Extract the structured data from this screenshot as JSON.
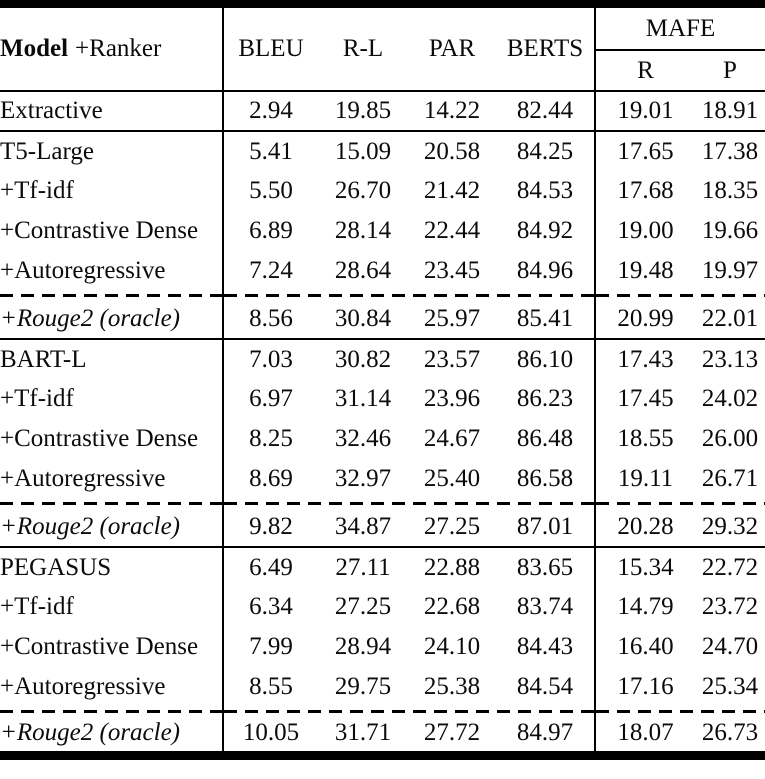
{
  "table": {
    "header": {
      "model_bold": "Model",
      "ranker": "+Ranker",
      "metric_columns": [
        "BLEU",
        "R-L",
        "PAR",
        "BERTS"
      ],
      "group": {
        "label": "MAFE",
        "sub_columns": [
          "R",
          "P"
        ]
      }
    },
    "sections": [
      {
        "rows": [
          {
            "label": "Extractive",
            "label_style": "bold",
            "values": [
              "2.94",
              "19.85",
              "14.22",
              "82.44",
              "19.01",
              "18.91"
            ],
            "bold_values": []
          }
        ]
      },
      {
        "rows": [
          {
            "label": "T5-Large",
            "label_style": "bold",
            "values": [
              "5.41",
              "15.09",
              "20.58",
              "84.25",
              "17.65",
              "17.38"
            ],
            "bold_values": []
          },
          {
            "label": "+Tf-idf",
            "label_style": "normal",
            "values": [
              "5.50",
              "26.70",
              "21.42",
              "84.53",
              "17.68",
              "18.35"
            ],
            "bold_values": []
          },
          {
            "label": "+Contrastive Dense",
            "label_style": "normal",
            "values": [
              "6.89",
              "28.14",
              "22.44",
              "84.92",
              "19.00",
              "19.66"
            ],
            "bold_values": []
          },
          {
            "label": "+Autoregressive",
            "label_style": "normal",
            "values": [
              "7.24",
              "28.64",
              "23.45",
              "84.96",
              "19.48",
              "19.97"
            ],
            "bold_values": [
              4
            ]
          },
          {
            "label": "+Rouge2 (oracle)",
            "label_style": "italic",
            "dashed_above": true,
            "values": [
              "8.56",
              "30.84",
              "25.97",
              "85.41",
              "20.99",
              "22.01"
            ],
            "bold_values": []
          }
        ]
      },
      {
        "rows": [
          {
            "label": "BART-L",
            "label_style": "bold",
            "values": [
              "7.03",
              "30.82",
              "23.57",
              "86.10",
              "17.43",
              "23.13"
            ],
            "bold_values": []
          },
          {
            "label": "+Tf-idf",
            "label_style": "normal",
            "values": [
              "6.97",
              "31.14",
              "23.96",
              "86.23",
              "17.45",
              "24.02"
            ],
            "bold_values": []
          },
          {
            "label": "+Contrastive Dense",
            "label_style": "normal",
            "values": [
              "8.25",
              "32.46",
              "24.67",
              "86.48",
              "18.55",
              "26.00"
            ],
            "bold_values": []
          },
          {
            "label": "+Autoregressive",
            "label_style": "normal",
            "values": [
              "8.69",
              "32.97",
              "25.40",
              "86.58",
              "19.11",
              "26.71"
            ],
            "bold_values": [
              0,
              1,
              2,
              3,
              5
            ]
          },
          {
            "label": "+Rouge2 (oracle)",
            "label_style": "italic",
            "dashed_above": true,
            "values": [
              "9.82",
              "34.87",
              "27.25",
              "87.01",
              "20.28",
              "29.32"
            ],
            "bold_values": []
          }
        ]
      },
      {
        "rows": [
          {
            "label": "PEGASUS",
            "label_style": "bold",
            "values": [
              "6.49",
              "27.11",
              "22.88",
              "83.65",
              "15.34",
              "22.72"
            ],
            "bold_values": []
          },
          {
            "label": "+Tf-idf",
            "label_style": "normal",
            "values": [
              "6.34",
              "27.25",
              "22.68",
              "83.74",
              "14.79",
              "23.72"
            ],
            "bold_values": []
          },
          {
            "label": "+Contrastive Dense",
            "label_style": "normal",
            "values": [
              "7.99",
              "28.94",
              "24.10",
              "84.43",
              "16.40",
              "24.70"
            ],
            "bold_values": []
          },
          {
            "label": "+Autoregressive",
            "label_style": "normal",
            "values": [
              "8.55",
              "29.75",
              "25.38",
              "84.54",
              "17.16",
              "25.34"
            ],
            "bold_values": []
          },
          {
            "label": "+Rouge2 (oracle)",
            "label_style": "italic",
            "dashed_above": true,
            "values": [
              "10.05",
              "31.71",
              "27.72",
              "84.97",
              "18.07",
              "26.73"
            ],
            "bold_values": []
          }
        ]
      }
    ],
    "colors": {
      "rule": "#000000",
      "text": "#0b0b0b",
      "background": "#ffffff"
    }
  }
}
